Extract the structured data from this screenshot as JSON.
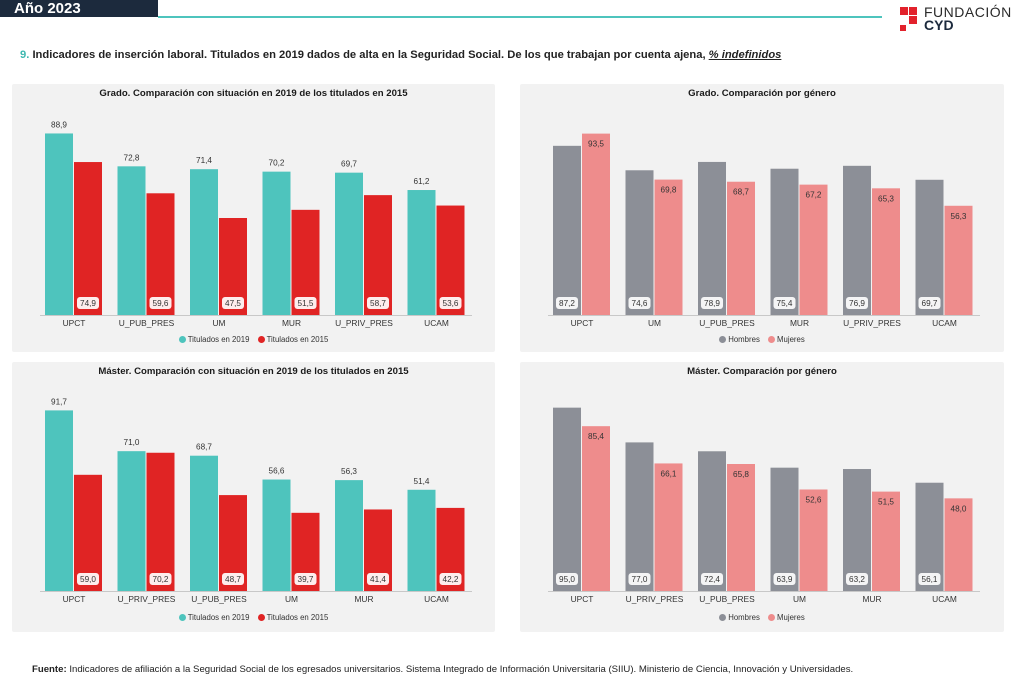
{
  "header": {
    "year_tab": "Año 2023"
  },
  "logo": {
    "line1": "FUNDACIÓN",
    "line2": "CYD"
  },
  "heading": {
    "number": "9.",
    "text": " Indicadores de inserción laboral. Titulados en 2019 dados de alta en la Seguridad Social. De los que trabajan por cuenta ajena, ",
    "underlined": "% indefinidos"
  },
  "colors": {
    "teal": "#4ec4bd",
    "red": "#e02424",
    "grey": "#8c8f97",
    "pink": "#ee8c8c",
    "panel": "#f2f2f2"
  },
  "chart_data": [
    {
      "type": "bar",
      "title": "Grado. Comparación con situación en 2019 de los titulados en 2015",
      "categories": [
        "UPCT",
        "U_PUB_PRES",
        "UM",
        "MUR",
        "U_PRIV_PRES",
        "UCAM"
      ],
      "series": [
        {
          "name": "Titulados en 2019",
          "values": [
            88.9,
            72.8,
            71.4,
            70.2,
            69.7,
            61.2
          ],
          "labels": [
            "88,9",
            "72,8",
            "71,4",
            "70,2",
            "69,7",
            "61,2"
          ],
          "color": "#4ec4bd"
        },
        {
          "name": "Titulados en 2015",
          "values": [
            74.9,
            59.6,
            47.5,
            51.5,
            58.7,
            53.6
          ],
          "labels": [
            "74,9",
            "59,6",
            "47,5",
            "51,5",
            "58,7",
            "53,6"
          ],
          "color": "#e02424"
        }
      ],
      "ylim": [
        0,
        95
      ],
      "legend": "bottom"
    },
    {
      "type": "bar",
      "title": "Grado. Comparación por género",
      "categories": [
        "UPCT",
        "UM",
        "U_PUB_PRES",
        "MUR",
        "U_PRIV_PRES",
        "UCAM"
      ],
      "series": [
        {
          "name": "Hombres",
          "values": [
            87.2,
            74.6,
            78.9,
            75.4,
            76.9,
            69.7
          ],
          "labels": [
            "87,2",
            "74,6",
            "78,9",
            "75,4",
            "76,9",
            "69,7"
          ],
          "color": "#8c8f97"
        },
        {
          "name": "Mujeres",
          "values": [
            93.5,
            69.8,
            68.7,
            67.2,
            65.3,
            56.3
          ],
          "labels": [
            "93,5",
            "69,8",
            "68,7",
            "67,2",
            "65,3",
            "56,3"
          ],
          "color": "#ee8c8c"
        }
      ],
      "ylim": [
        0,
        100
      ],
      "legend": "bottom"
    },
    {
      "type": "bar",
      "title": "Máster. Comparación con situación en 2019 de los titulados en 2015",
      "categories": [
        "UPCT",
        "U_PRIV_PRES",
        "U_PUB_PRES",
        "UM",
        "MUR",
        "UCAM"
      ],
      "series": [
        {
          "name": "Titulados en 2019",
          "values": [
            91.7,
            71.0,
            68.7,
            56.6,
            56.3,
            51.4
          ],
          "labels": [
            "91,7",
            "71,0",
            "68,7",
            "56,6",
            "56,3",
            "51,4"
          ],
          "color": "#4ec4bd"
        },
        {
          "name": "Titulados en 2015",
          "values": [
            59.0,
            70.2,
            48.7,
            39.7,
            41.4,
            42.2
          ],
          "labels": [
            "59,0",
            "70,2",
            "48,7",
            "39,7",
            "41,4",
            "42,2"
          ],
          "color": "#e02424"
        }
      ],
      "ylim": [
        0,
        98
      ],
      "legend": "bottom"
    },
    {
      "type": "bar",
      "title": "Máster. Comparación por género",
      "categories": [
        "UPCT",
        "U_PRIV_PRES",
        "U_PUB_PRES",
        "UM",
        "MUR",
        "UCAM"
      ],
      "series": [
        {
          "name": "Hombres",
          "values": [
            95.0,
            77.0,
            72.4,
            63.9,
            63.2,
            56.1
          ],
          "labels": [
            "95,0",
            "77,0",
            "72,4",
            "63,9",
            "63,2",
            "56,1"
          ],
          "color": "#8c8f97"
        },
        {
          "name": "Mujeres",
          "values": [
            85.4,
            66.1,
            65.8,
            52.6,
            51.5,
            48.0
          ],
          "labels": [
            "85,4",
            "66,1",
            "65,8",
            "52,6",
            "51,5",
            "48,0"
          ],
          "color": "#ee8c8c"
        }
      ],
      "ylim": [
        0,
        100
      ],
      "legend": "bottom"
    }
  ],
  "source": {
    "label": "Fuente:",
    "text": " Indicadores de afiliación a la Seguridad Social de los egresados universitarios. Sistema Integrado de Información Universitaria (SIIU). Ministerio de Ciencia, Innovación y Universidades."
  }
}
